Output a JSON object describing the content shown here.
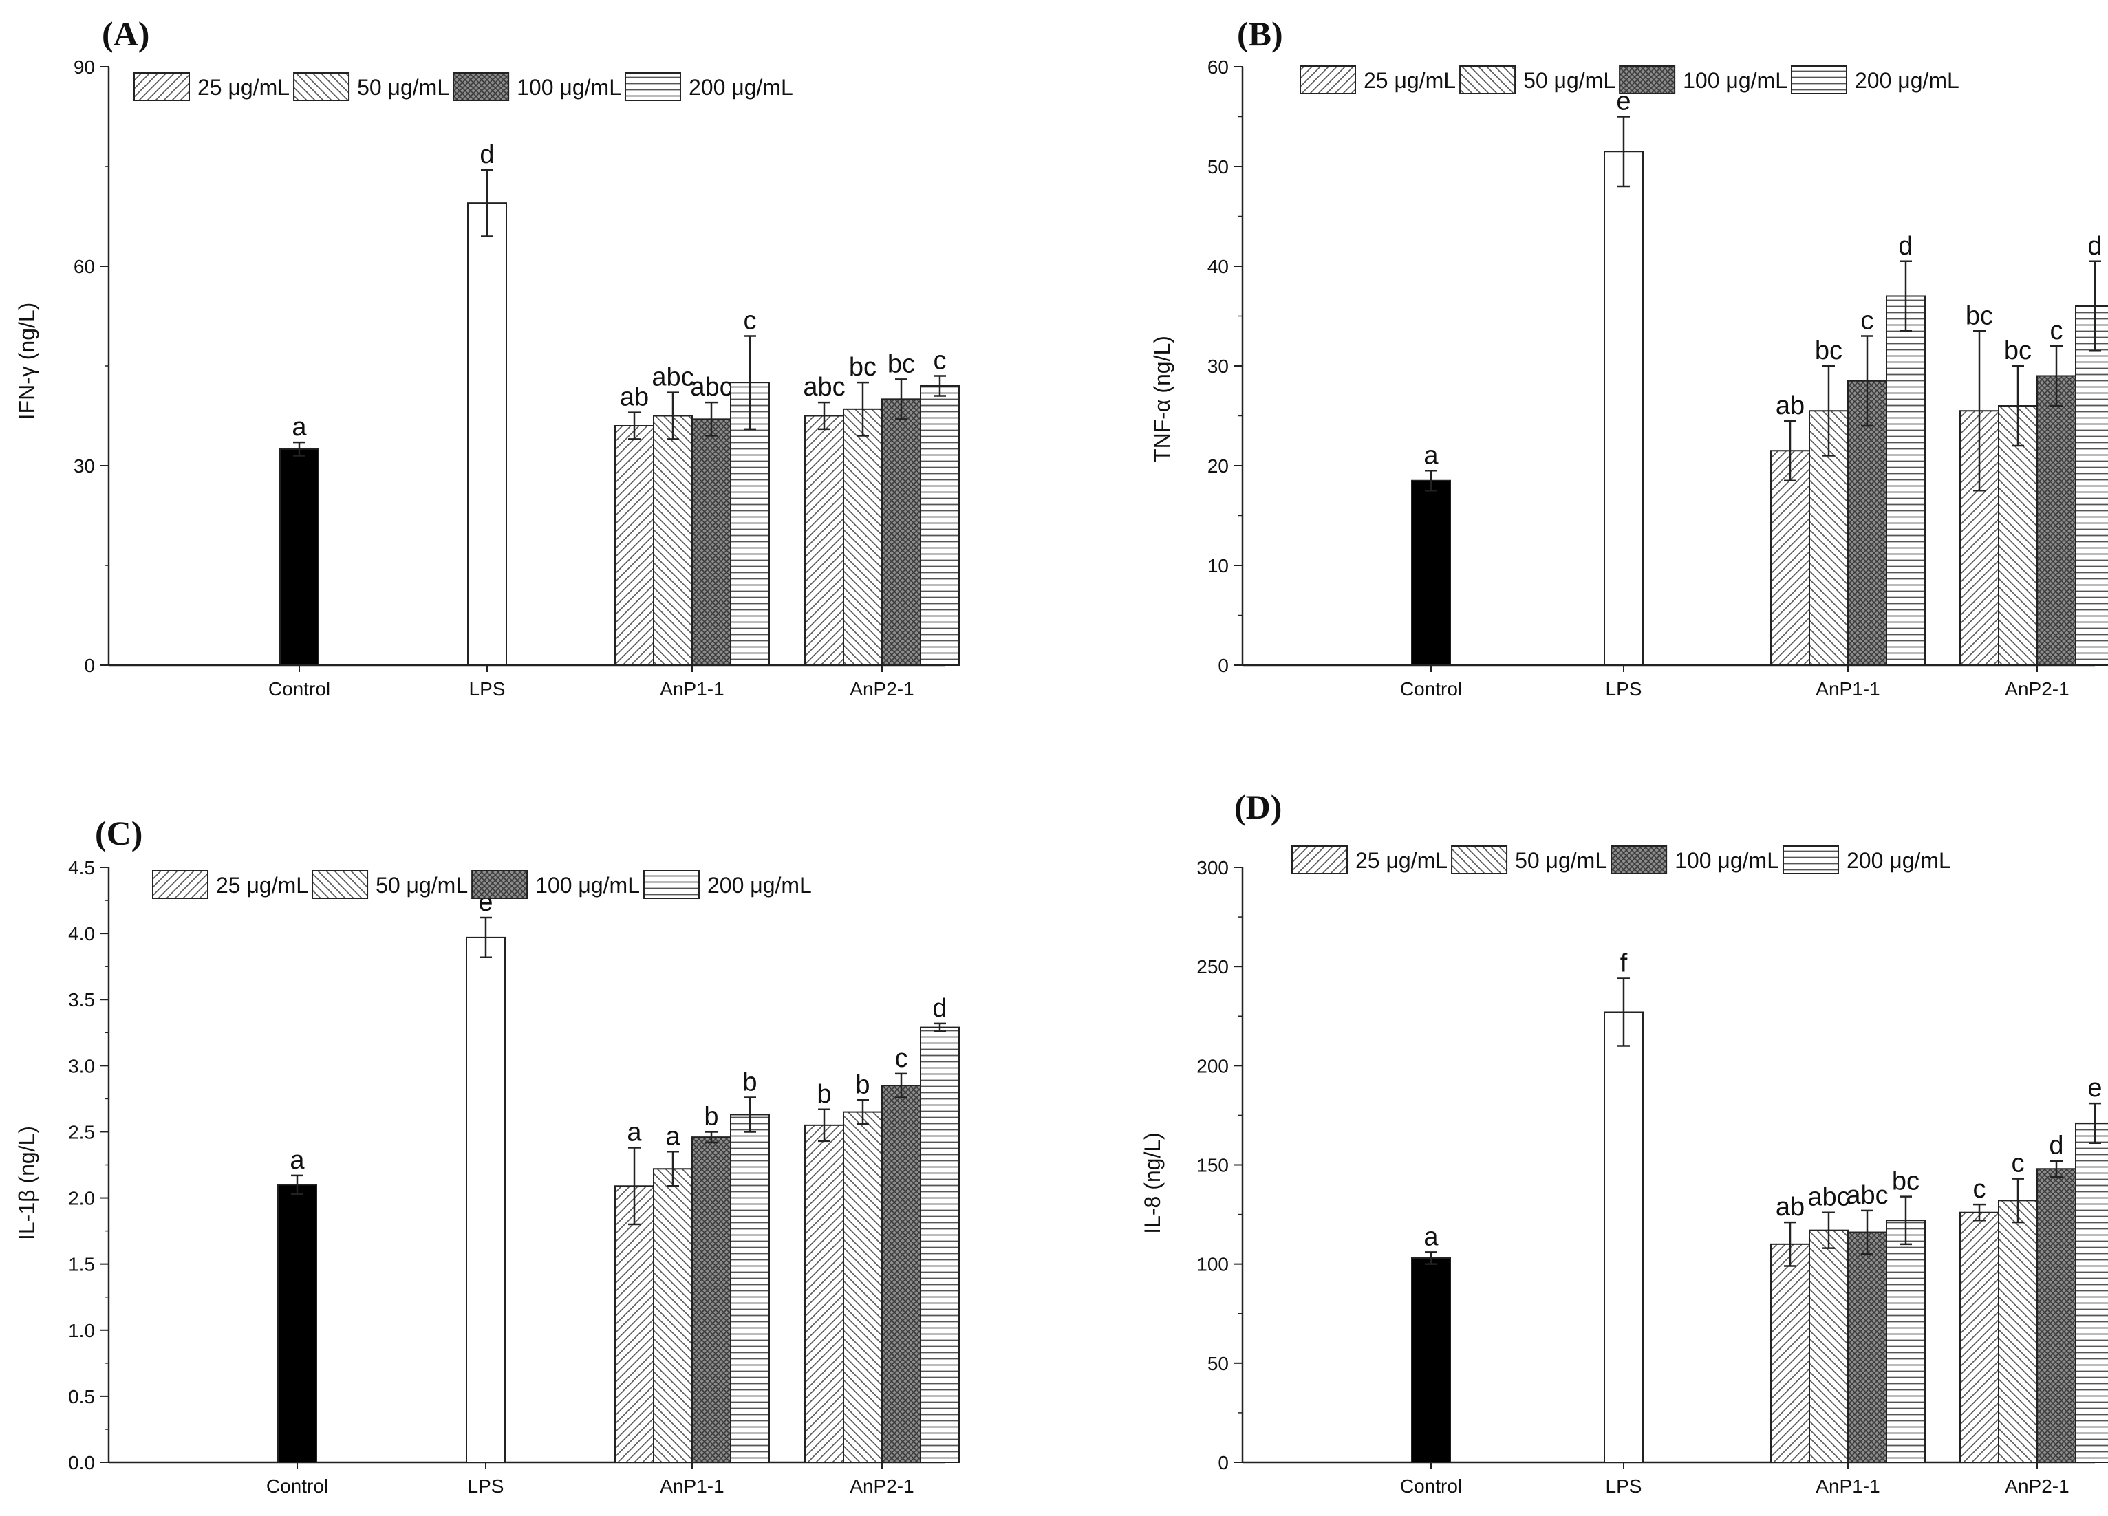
{
  "legend": {
    "entries": [
      "25 μg/mL",
      "50 μg/mL",
      "100 μg/mL",
      "200 μg/mL"
    ]
  },
  "chart_data": [
    {
      "panel": "(A)",
      "type": "bar",
      "ylabel": "IFN-γ (ng/L)",
      "ylim": [
        0,
        90
      ],
      "yticks": [
        0,
        30,
        60,
        90
      ],
      "categories": [
        "Control",
        "LPS",
        "AnP1-1",
        "AnP2-1"
      ],
      "control": {
        "value": 32.5,
        "error": 1.0,
        "letter": "a"
      },
      "lps": {
        "value": 69.5,
        "error": 5.0,
        "letter": "d"
      },
      "groups": [
        {
          "name": "AnP1-1",
          "values": [
            36,
            37.5,
            37,
            42.5
          ],
          "errors": [
            2,
            3.5,
            2.5,
            7
          ],
          "letters": [
            "ab",
            "abc",
            "abc",
            "c"
          ]
        },
        {
          "name": "AnP2-1",
          "values": [
            37.5,
            38.5,
            40,
            42
          ],
          "errors": [
            2,
            4,
            3,
            1.5
          ],
          "letters": [
            "abc",
            "bc",
            "bc",
            "c"
          ]
        }
      ]
    },
    {
      "panel": "(B)",
      "type": "bar",
      "ylabel": "TNF-α (ng/L)",
      "ylim": [
        0,
        60
      ],
      "yticks": [
        0,
        10,
        20,
        30,
        40,
        50,
        60
      ],
      "categories": [
        "Control",
        "LPS",
        "AnP1-1",
        "AnP2-1"
      ],
      "control": {
        "value": 18.5,
        "error": 1.0,
        "letter": "a"
      },
      "lps": {
        "value": 51.5,
        "error": 3.5,
        "letter": "e"
      },
      "groups": [
        {
          "name": "AnP1-1",
          "values": [
            21.5,
            25.5,
            28.5,
            37
          ],
          "errors": [
            3,
            4.5,
            4.5,
            3.5
          ],
          "letters": [
            "ab",
            "bc",
            "c",
            "d"
          ]
        },
        {
          "name": "AnP2-1",
          "values": [
            25.5,
            26,
            29,
            36
          ],
          "errors": [
            8,
            4,
            3,
            4.5
          ],
          "letters": [
            "bc",
            "bc",
            "c",
            "d"
          ]
        }
      ]
    },
    {
      "panel": "(C)",
      "type": "bar",
      "ylabel": "IL-1β (ng/L)",
      "ylim": [
        0,
        4.5
      ],
      "yticks": [
        "0.0",
        "0.5",
        "1.0",
        "1.5",
        "2.0",
        "2.5",
        "3.0",
        "3.5",
        "4.0",
        "4.5"
      ],
      "categories": [
        "Control",
        "LPS",
        "AnP1-1",
        "AnP2-1"
      ],
      "control": {
        "value": 2.1,
        "error": 0.07,
        "letter": "a"
      },
      "lps": {
        "value": 3.97,
        "error": 0.15,
        "letter": "e"
      },
      "groups": [
        {
          "name": "AnP1-1",
          "values": [
            2.09,
            2.22,
            2.46,
            2.63
          ],
          "errors": [
            0.29,
            0.13,
            0.04,
            0.13
          ],
          "letters": [
            "a",
            "a",
            "b",
            "b"
          ]
        },
        {
          "name": "AnP2-1",
          "values": [
            2.55,
            2.65,
            2.85,
            3.29
          ],
          "errors": [
            0.12,
            0.09,
            0.09,
            0.03
          ],
          "letters": [
            "b",
            "b",
            "c",
            "d"
          ]
        }
      ]
    },
    {
      "panel": "(D)",
      "type": "bar",
      "ylabel": "IL-8 (ng/L)",
      "ylim": [
        0,
        300
      ],
      "yticks": [
        0,
        50,
        100,
        150,
        200,
        250,
        300
      ],
      "categories": [
        "Control",
        "LPS",
        "AnP1-1",
        "AnP2-1"
      ],
      "control": {
        "value": 103,
        "error": 3,
        "letter": "a"
      },
      "lps": {
        "value": 227,
        "error": 17,
        "letter": "f"
      },
      "groups": [
        {
          "name": "AnP1-1",
          "values": [
            110,
            117,
            116,
            122
          ],
          "errors": [
            11,
            9,
            11,
            12
          ],
          "letters": [
            "ab",
            "abc",
            "abc",
            "bc"
          ]
        },
        {
          "name": "AnP2-1",
          "values": [
            126,
            132,
            148,
            171
          ],
          "errors": [
            4,
            11,
            4,
            10
          ],
          "letters": [
            "c",
            "c",
            "d",
            "e"
          ]
        }
      ]
    }
  ]
}
